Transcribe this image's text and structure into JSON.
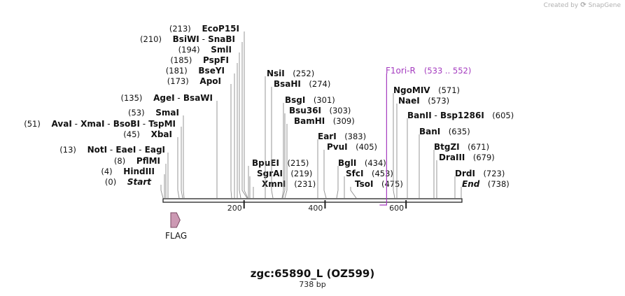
{
  "credit": {
    "prefix": "Created by",
    "brand": "SnapGene"
  },
  "map": {
    "title": "zgc:65890_L (OZ599)",
    "length_label": "738 bp",
    "sequence_length": 738,
    "ticks": [
      200,
      400,
      600
    ],
    "colors": {
      "backbone": "#222222",
      "site_line": "#8c8c8c",
      "primer": "#a43bbf",
      "feature_fill": "#cc99b3",
      "feature_stroke": "#7a4a63"
    }
  },
  "features": [
    {
      "name": "FLAG",
      "start": 19,
      "end": 42,
      "direction": "forward"
    }
  ],
  "primers": [
    {
      "name": "F1ori-R",
      "range": "(533 .. 552)",
      "start": 533,
      "end": 552
    }
  ],
  "sites_left": [
    {
      "parts": [
        {
          "t": "(0)",
          "s": "num"
        },
        {
          "t": "Start",
          "s": "italic"
        }
      ],
      "pos": 0
    },
    {
      "parts": [
        {
          "t": "(4)",
          "s": "num"
        },
        {
          "t": "HindIII",
          "s": "bold"
        }
      ],
      "pos": 4
    },
    {
      "parts": [
        {
          "t": "(8)",
          "s": "num"
        },
        {
          "t": "PflMI",
          "s": "bold"
        }
      ],
      "pos": 8
    },
    {
      "parts": [
        {
          "t": "(13)",
          "s": "num"
        },
        {
          "t": "NotI",
          "s": "bold"
        },
        {
          "t": "-",
          "s": "dash"
        },
        {
          "t": "EaeI",
          "s": "bold"
        },
        {
          "t": "-",
          "s": "dash"
        },
        {
          "t": "EagI",
          "s": "bold"
        }
      ],
      "pos": 13
    },
    {
      "parts": [
        {
          "t": "(45)",
          "s": "num"
        },
        {
          "t": "XbaI",
          "s": "bold"
        }
      ],
      "pos": 45
    },
    {
      "parts": [
        {
          "t": "(51)",
          "s": "num"
        },
        {
          "t": "AvaI",
          "s": "bold"
        },
        {
          "t": "-",
          "s": "dash"
        },
        {
          "t": "XmaI",
          "s": "bold"
        },
        {
          "t": "-",
          "s": "dash"
        },
        {
          "t": "BsoBI",
          "s": "bold"
        },
        {
          "t": "-",
          "s": "dash"
        },
        {
          "t": "TspMI",
          "s": "bold"
        }
      ],
      "pos": 51
    },
    {
      "parts": [
        {
          "t": "(53)",
          "s": "num"
        },
        {
          "t": "SmaI",
          "s": "bold"
        }
      ],
      "pos": 53
    },
    {
      "parts": [
        {
          "t": "(135)",
          "s": "num"
        },
        {
          "t": "AgeI",
          "s": "bold"
        },
        {
          "t": "-",
          "s": "dash"
        },
        {
          "t": "BsaWI",
          "s": "bold"
        }
      ],
      "pos": 135
    },
    {
      "parts": [
        {
          "t": "(173)",
          "s": "num"
        },
        {
          "t": "ApoI",
          "s": "bold"
        }
      ],
      "pos": 173
    },
    {
      "parts": [
        {
          "t": "(181)",
          "s": "num"
        },
        {
          "t": "BseYI",
          "s": "bold"
        }
      ],
      "pos": 181
    },
    {
      "parts": [
        {
          "t": "(185)",
          "s": "num"
        },
        {
          "t": "PspFI",
          "s": "bold"
        }
      ],
      "pos": 185
    },
    {
      "parts": [
        {
          "t": "(194)",
          "s": "num"
        },
        {
          "t": "SmlI",
          "s": "bold"
        }
      ],
      "pos": 194
    },
    {
      "parts": [
        {
          "t": "(210)",
          "s": "num"
        },
        {
          "t": "BsiWI",
          "s": "bold"
        },
        {
          "t": "-",
          "s": "dash"
        },
        {
          "t": "SnaBI",
          "s": "bold"
        }
      ],
      "pos": 210
    },
    {
      "parts": [
        {
          "t": "(213)",
          "s": "num"
        },
        {
          "t": "EcoP15I",
          "s": "bold"
        }
      ],
      "pos": 213
    }
  ],
  "sites_right": [
    {
      "parts": [
        {
          "t": "BpuEI",
          "s": "bold"
        },
        {
          "t": "(215)",
          "s": "num"
        }
      ],
      "pos": 215
    },
    {
      "parts": [
        {
          "t": "SgrAI",
          "s": "bold"
        },
        {
          "t": "(219)",
          "s": "num"
        }
      ],
      "pos": 219
    },
    {
      "parts": [
        {
          "t": "XmnI",
          "s": "bold"
        },
        {
          "t": "(231)",
          "s": "num"
        }
      ],
      "pos": 231
    },
    {
      "parts": [
        {
          "t": "NsiI",
          "s": "bold"
        },
        {
          "t": "(252)",
          "s": "num"
        }
      ],
      "pos": 252
    },
    {
      "parts": [
        {
          "t": "BsaHI",
          "s": "bold"
        },
        {
          "t": "(274)",
          "s": "num"
        }
      ],
      "pos": 274
    },
    {
      "parts": [
        {
          "t": "BsgI",
          "s": "bold"
        },
        {
          "t": "(301)",
          "s": "num"
        }
      ],
      "pos": 301
    },
    {
      "parts": [
        {
          "t": "Bsu36I",
          "s": "bold"
        },
        {
          "t": "(303)",
          "s": "num"
        }
      ],
      "pos": 303
    },
    {
      "parts": [
        {
          "t": "BamHI",
          "s": "bold"
        },
        {
          "t": "(309)",
          "s": "num"
        }
      ],
      "pos": 309
    },
    {
      "parts": [
        {
          "t": "EarI",
          "s": "bold"
        },
        {
          "t": "(383)",
          "s": "num"
        }
      ],
      "pos": 383
    },
    {
      "parts": [
        {
          "t": "PvuI",
          "s": "bold"
        },
        {
          "t": "(405)",
          "s": "num"
        }
      ],
      "pos": 405
    },
    {
      "parts": [
        {
          "t": "BglI",
          "s": "bold"
        },
        {
          "t": "(434)",
          "s": "num"
        }
      ],
      "pos": 434
    },
    {
      "parts": [
        {
          "t": "SfcI",
          "s": "bold"
        },
        {
          "t": "(453)",
          "s": "num"
        }
      ],
      "pos": 453
    },
    {
      "parts": [
        {
          "t": "TsoI",
          "s": "bold"
        },
        {
          "t": "(475)",
          "s": "num"
        }
      ],
      "pos": 475
    },
    {
      "parts": [
        {
          "t": "NgoMIV",
          "s": "bold"
        },
        {
          "t": "(571)",
          "s": "num"
        }
      ],
      "pos": 571
    },
    {
      "parts": [
        {
          "t": "NaeI",
          "s": "bold"
        },
        {
          "t": "(573)",
          "s": "num"
        }
      ],
      "pos": 573
    },
    {
      "parts": [
        {
          "t": "BanII",
          "s": "bold"
        },
        {
          "t": "-",
          "s": "dash"
        },
        {
          "t": "Bsp1286I",
          "s": "bold"
        },
        {
          "t": "(605)",
          "s": "num"
        }
      ],
      "pos": 605
    },
    {
      "parts": [
        {
          "t": "BanI",
          "s": "bold"
        },
        {
          "t": "(635)",
          "s": "num"
        }
      ],
      "pos": 635
    },
    {
      "parts": [
        {
          "t": "BtgZI",
          "s": "bold"
        },
        {
          "t": "(671)",
          "s": "num"
        }
      ],
      "pos": 671
    },
    {
      "parts": [
        {
          "t": "DraIII",
          "s": "bold"
        },
        {
          "t": "(679)",
          "s": "num"
        }
      ],
      "pos": 679
    },
    {
      "parts": [
        {
          "t": "DrdI",
          "s": "bold"
        },
        {
          "t": "(723)",
          "s": "num"
        }
      ],
      "pos": 723
    },
    {
      "parts": [
        {
          "t": "End",
          "s": "italic"
        },
        {
          "t": "(738)",
          "s": "num"
        }
      ],
      "pos": 738
    }
  ]
}
